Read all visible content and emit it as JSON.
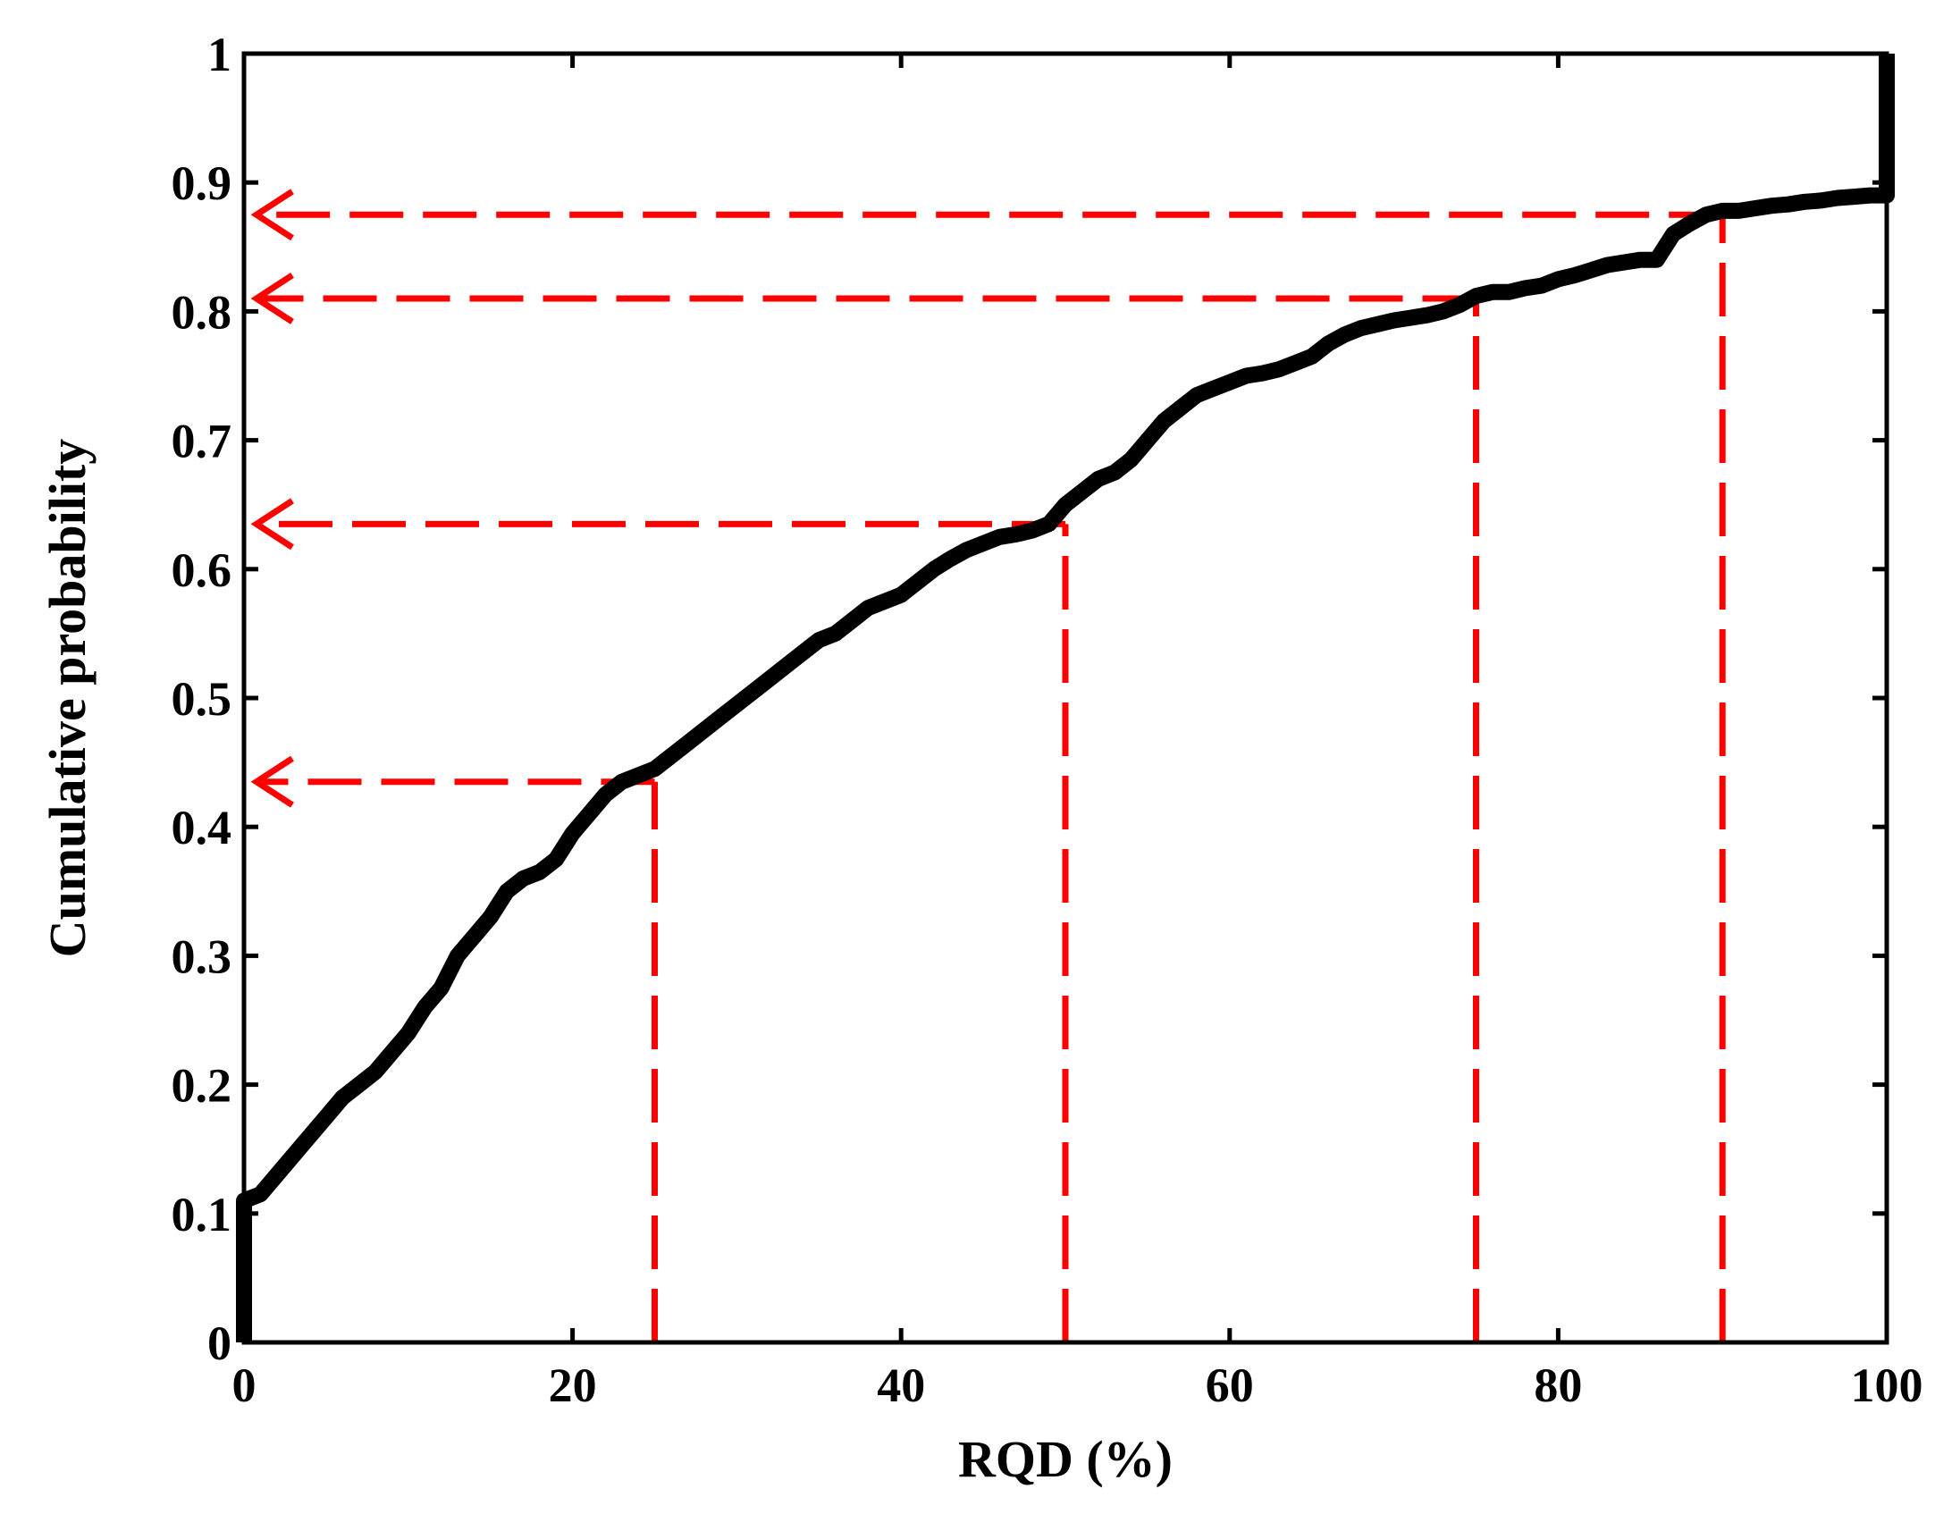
{
  "chart_data": {
    "type": "line",
    "title": "",
    "xlabel": "RQD (%)",
    "ylabel": "Cumulative probability",
    "xlim": [
      0,
      100
    ],
    "ylim": [
      0,
      1
    ],
    "x_ticks": [
      0,
      20,
      40,
      60,
      80,
      100
    ],
    "x_tick_labels": [
      "0",
      "20",
      "40",
      "60",
      "80",
      "100"
    ],
    "y_ticks": [
      0,
      0.1,
      0.2,
      0.3,
      0.4,
      0.5,
      0.6,
      0.7,
      0.8,
      0.9,
      1
    ],
    "y_tick_labels": [
      "0",
      "0.1",
      "0.2",
      "0.3",
      "0.4",
      "0.5",
      "0.6",
      "0.7",
      "0.8",
      "0.9",
      "1"
    ],
    "grid": false,
    "legend": "none",
    "series": [
      {
        "color": "#000000",
        "x": [
          0,
          0,
          1,
          2,
          3,
          4,
          5,
          6,
          7,
          8,
          9,
          10,
          11,
          12,
          13,
          14,
          15,
          16,
          17,
          18,
          19,
          20,
          21,
          22,
          23,
          24,
          25,
          26,
          27,
          28,
          29,
          30,
          31,
          32,
          33,
          34,
          35,
          36,
          37,
          38,
          39,
          40,
          41,
          42,
          43,
          44,
          45,
          46,
          47,
          48,
          49,
          50,
          51,
          52,
          53,
          54,
          55,
          56,
          57,
          58,
          59,
          60,
          61,
          62,
          63,
          64,
          65,
          66,
          67,
          68,
          69,
          70,
          71,
          72,
          73,
          74,
          75,
          76,
          77,
          78,
          79,
          80,
          81,
          82,
          83,
          84,
          85,
          86,
          87,
          88,
          89,
          90,
          91,
          92,
          93,
          94,
          95,
          96,
          97,
          98,
          99,
          100,
          100
        ],
        "y": [
          0,
          0.11,
          0.115,
          0.13,
          0.145,
          0.16,
          0.175,
          0.19,
          0.2,
          0.21,
          0.225,
          0.24,
          0.26,
          0.275,
          0.3,
          0.315,
          0.33,
          0.35,
          0.36,
          0.365,
          0.375,
          0.395,
          0.41,
          0.425,
          0.435,
          0.44,
          0.445,
          0.455,
          0.465,
          0.475,
          0.485,
          0.495,
          0.505,
          0.515,
          0.525,
          0.535,
          0.545,
          0.55,
          0.56,
          0.57,
          0.575,
          0.58,
          0.59,
          0.6,
          0.608,
          0.615,
          0.62,
          0.625,
          0.627,
          0.63,
          0.635,
          0.65,
          0.66,
          0.67,
          0.675,
          0.685,
          0.7,
          0.715,
          0.725,
          0.735,
          0.74,
          0.745,
          0.75,
          0.752,
          0.755,
          0.76,
          0.765,
          0.775,
          0.782,
          0.787,
          0.79,
          0.793,
          0.795,
          0.797,
          0.8,
          0.805,
          0.812,
          0.815,
          0.815,
          0.818,
          0.82,
          0.825,
          0.828,
          0.832,
          0.836,
          0.838,
          0.84,
          0.84,
          0.86,
          0.868,
          0.875,
          0.878,
          0.878,
          0.88,
          0.882,
          0.883,
          0.885,
          0.886,
          0.888,
          0.889,
          0.89,
          0.89,
          1.0
        ]
      }
    ],
    "guide_lines": {
      "color": "#ff0000",
      "x": [
        25,
        50,
        75,
        90
      ],
      "y": [
        0.435,
        0.635,
        0.81,
        0.875
      ]
    }
  }
}
